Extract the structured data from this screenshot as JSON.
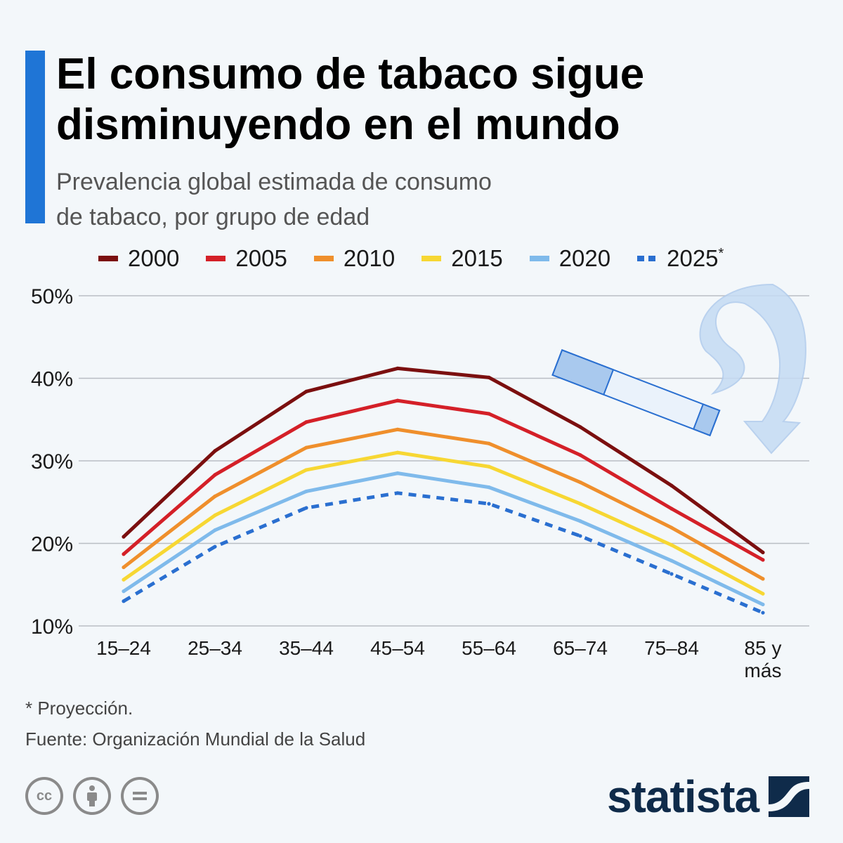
{
  "header": {
    "title": "El consumo de tabaco sigue disminuyendo en el mundo",
    "subtitle_line1": "Prevalencia global estimada de consumo",
    "subtitle_line2": "de tabaco, por grupo de edad"
  },
  "footer": {
    "footnote": "* Proyección.",
    "source": "Fuente: Organización Mundial de la Salud",
    "brand": "statista"
  },
  "colors": {
    "accent": "#1f75d6",
    "s2000": "#7b0f0f",
    "s2005": "#d42028",
    "s2010": "#ef8f2c",
    "s2015": "#f7d733",
    "s2020": "#7fbaeb",
    "s2025": "#2a6fd0"
  },
  "icons": [
    "cc-icon",
    "attribution-icon",
    "no-derivatives-icon",
    "cigarette-icon",
    "smoke-arrow-icon",
    "statista-logo-icon"
  ],
  "chart_data": {
    "type": "line",
    "title": "",
    "xlabel": "",
    "ylabel": "",
    "categories": [
      "15–24",
      "25–34",
      "35–44",
      "45–54",
      "55–64",
      "65–74",
      "75–84",
      "85 y más"
    ],
    "ylim": [
      10,
      50
    ],
    "yticks": [
      "50%",
      "40%",
      "30%",
      "20%",
      "10%"
    ],
    "grid": true,
    "legend_position": "top",
    "series": [
      {
        "name": "2000",
        "values": [
          20.8,
          31.2,
          38.4,
          41.2,
          40.1,
          34.1,
          27.0,
          18.9
        ],
        "color": "#7b0f0f",
        "dashed": false
      },
      {
        "name": "2005",
        "values": [
          18.7,
          28.3,
          34.7,
          37.3,
          35.7,
          30.7,
          24.2,
          18.0
        ],
        "color": "#d42028",
        "dashed": false
      },
      {
        "name": "2010",
        "values": [
          17.1,
          25.7,
          31.6,
          33.8,
          32.1,
          27.4,
          21.9,
          15.7
        ],
        "color": "#ef8f2c",
        "dashed": false
      },
      {
        "name": "2015",
        "values": [
          15.6,
          23.4,
          28.9,
          31.0,
          29.3,
          24.8,
          19.8,
          13.9
        ],
        "color": "#f7d733",
        "dashed": false
      },
      {
        "name": "2020",
        "values": [
          14.2,
          21.6,
          26.3,
          28.5,
          26.8,
          22.7,
          17.9,
          12.6
        ],
        "color": "#7fbaeb",
        "dashed": false
      },
      {
        "name": "2025",
        "values": [
          13.0,
          19.6,
          24.3,
          26.1,
          24.8,
          20.9,
          16.3,
          11.6
        ],
        "color": "#2a6fd0",
        "dashed": true
      }
    ],
    "legend_suffix_2025": "*"
  }
}
